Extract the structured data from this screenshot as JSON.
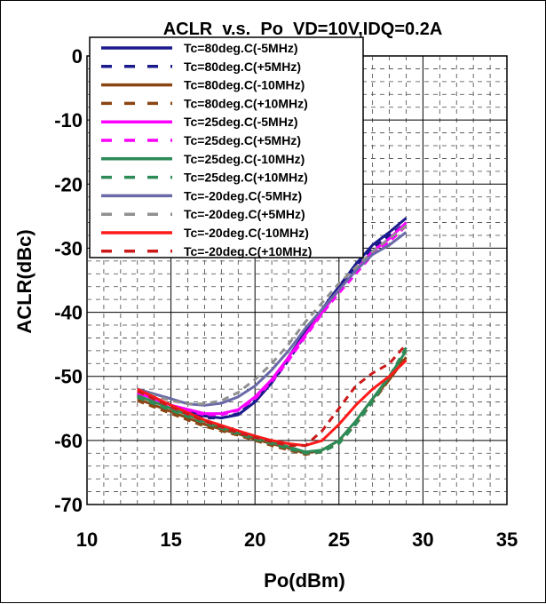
{
  "chart_data": {
    "type": "line",
    "title": "ACLR  v.s.  Po  VD=10V,IDQ=0.2A",
    "xlabel": "Po(dBm)",
    "ylabel": "ACLR(dBc)",
    "xlim": [
      10,
      35
    ],
    "ylim": [
      -70,
      0
    ],
    "xticks": [
      "10",
      "15",
      "20",
      "25",
      "30",
      "35"
    ],
    "yticks": [
      "0",
      "-10",
      "-20",
      "-30",
      "-40",
      "-50",
      "-60",
      "-70"
    ],
    "grid": true,
    "minor_grid": "dashed",
    "legend_position": "top-left",
    "series": [
      {
        "name": "Tc=80deg.C(-5MHz)",
        "color": "#1a1a8c",
        "dash": false,
        "x": [
          13,
          15,
          17,
          18,
          19,
          20,
          21,
          22,
          23,
          24,
          25,
          26,
          27,
          28,
          29
        ],
        "y": [
          -52.5,
          -54.5,
          -56.2,
          -56.5,
          -56,
          -54,
          -51,
          -47,
          -43,
          -39.5,
          -36,
          -32.5,
          -29.5,
          -27.5,
          -25.3
        ]
      },
      {
        "name": "Tc=80deg.C(+5MHz)",
        "color": "#1a1a8c",
        "dash": true,
        "x": [
          13,
          15,
          17,
          18,
          19,
          20,
          21,
          22,
          23,
          24,
          25,
          26,
          27,
          28,
          29
        ],
        "y": [
          -52.8,
          -54.8,
          -56.5,
          -56.5,
          -55.8,
          -53.8,
          -51,
          -47.5,
          -43.5,
          -39.5,
          -36,
          -32.8,
          -30,
          -28,
          -26
        ]
      },
      {
        "name": "Tc=80deg.C(-10MHz)",
        "color": "#8b4513",
        "dash": false,
        "x": [
          13,
          15,
          17,
          19,
          20,
          21,
          22,
          23,
          24,
          25,
          26,
          27,
          28,
          29
        ],
        "y": [
          -53.5,
          -55.5,
          -57.5,
          -59,
          -59.8,
          -60.5,
          -61.2,
          -62,
          -61.5,
          -60,
          -57,
          -53.5,
          -50.5,
          -47
        ]
      },
      {
        "name": "Tc=80deg.C(+10MHz)",
        "color": "#8b4513",
        "dash": true,
        "x": [
          13,
          15,
          17,
          19,
          20,
          21,
          22,
          23,
          24,
          25,
          26,
          27,
          28,
          29
        ],
        "y": [
          -53.8,
          -55.8,
          -57.8,
          -59.2,
          -60,
          -60.8,
          -61.5,
          -62.2,
          -61.8,
          -60.2,
          -57.5,
          -54,
          -50.5,
          -46.5
        ]
      },
      {
        "name": "Tc=25deg.C(-5MHz)",
        "color": "#ff00ff",
        "dash": false,
        "x": [
          13,
          15,
          17,
          18,
          19,
          20,
          21,
          22,
          23,
          24,
          25,
          26,
          27,
          28,
          29
        ],
        "y": [
          -52.5,
          -54.5,
          -55.8,
          -55.8,
          -55.2,
          -53.2,
          -50.5,
          -47,
          -43.5,
          -40,
          -36.5,
          -33.5,
          -30.5,
          -28.5,
          -26
        ]
      },
      {
        "name": "Tc=25deg.C(+5MHz)",
        "color": "#ff00ff",
        "dash": true,
        "x": [
          13,
          15,
          17,
          18,
          19,
          20,
          21,
          22,
          23,
          24,
          25,
          26,
          27,
          28,
          29
        ],
        "y": [
          -52.8,
          -54.8,
          -56,
          -56,
          -55.3,
          -53.5,
          -50.8,
          -47.5,
          -43.8,
          -40.2,
          -37,
          -34,
          -31,
          -29,
          -26.5
        ]
      },
      {
        "name": "Tc=25deg.C(-10MHz)",
        "color": "#2e8b57",
        "dash": false,
        "x": [
          13,
          15,
          17,
          19,
          20,
          21,
          22,
          23,
          24,
          25,
          26,
          27,
          28,
          29
        ],
        "y": [
          -53,
          -55,
          -57,
          -58.8,
          -59.5,
          -60.3,
          -61,
          -61.8,
          -61.5,
          -60,
          -57,
          -53.5,
          -50,
          -46
        ]
      },
      {
        "name": "Tc=25deg.C(+10MHz)",
        "color": "#2e8b57",
        "dash": true,
        "x": [
          13,
          15,
          17,
          19,
          20,
          21,
          22,
          23,
          24,
          25,
          26,
          27,
          28,
          29
        ],
        "y": [
          -53.3,
          -55.3,
          -57.3,
          -59,
          -59.8,
          -60.5,
          -61.3,
          -62,
          -61.8,
          -60.5,
          -57.5,
          -54,
          -50,
          -45.5
        ]
      },
      {
        "name": "Tc=-20deg.C(-5MHz)",
        "color": "#6a6aa8",
        "dash": false,
        "x": [
          13,
          15,
          16,
          17,
          18,
          19,
          20,
          21,
          22,
          23,
          24,
          25,
          26,
          27,
          28,
          29
        ],
        "y": [
          -52,
          -53.5,
          -54.3,
          -54.5,
          -54.2,
          -53.2,
          -51.5,
          -49,
          -46,
          -42.5,
          -39.5,
          -36.5,
          -33.5,
          -31,
          -29.5,
          -27.5
        ]
      },
      {
        "name": "Tc=-20deg.C(+5MHz)",
        "color": "#909090",
        "dash": true,
        "x": [
          13,
          15,
          16,
          17,
          18,
          19,
          20,
          21,
          22,
          23,
          24,
          25,
          26,
          27,
          28,
          29
        ],
        "y": [
          -52.2,
          -53.8,
          -54.3,
          -54.3,
          -53.8,
          -52.5,
          -50.5,
          -48,
          -45,
          -41.5,
          -38.5,
          -35.5,
          -33,
          -30.5,
          -28.5,
          -26.5
        ]
      },
      {
        "name": "Tc=-20deg.C(-10MHz)",
        "color": "#ff1a1a",
        "dash": false,
        "x": [
          13,
          15,
          17,
          19,
          20,
          21,
          22,
          23,
          24,
          25,
          26,
          27,
          28,
          29
        ],
        "y": [
          -52,
          -54.5,
          -56.8,
          -58.5,
          -59.3,
          -60,
          -60.5,
          -60.8,
          -60,
          -57.5,
          -54.5,
          -52,
          -50,
          -47.5
        ]
      },
      {
        "name": "Tc=-20deg.C(+10MHz)",
        "color": "#cc1a1a",
        "dash": true,
        "x": [
          13,
          15,
          17,
          19,
          20,
          21,
          22,
          23,
          24,
          25,
          26,
          27,
          28,
          29
        ],
        "y": [
          -52.3,
          -54.8,
          -57,
          -58.8,
          -59.5,
          -60.2,
          -60.8,
          -60.8,
          -58.5,
          -55,
          -51.5,
          -49.5,
          -48,
          -45
        ]
      }
    ]
  }
}
